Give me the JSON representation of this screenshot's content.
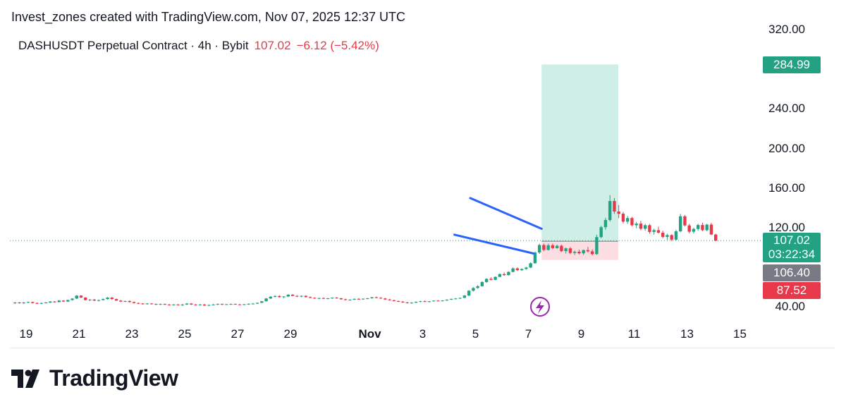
{
  "header": {
    "attribution": "Invest_zones created with TradingView.com, Nov 07, 2025 12:37 UTC",
    "symbol": "DASHUSDT Perpetual Contract · 4h · Bybit",
    "last_price": "107.02",
    "change": "−6.12 (−5.42%)"
  },
  "price_tags": {
    "target": "284.99",
    "last_price": "107.02",
    "countdown": "03:22:34",
    "entry": "106.40",
    "stop": "87.52"
  },
  "brand": {
    "name": "TradingView"
  },
  "colors": {
    "up": "#22a283",
    "down": "#e8394a",
    "pattern_line": "#2962ff",
    "target_zone": "#cfeee6",
    "stop_zone": "#fbdde2"
  },
  "chart_data": {
    "type": "candlestick",
    "timeframe": "4h",
    "y_ticks": [
      "320.00",
      "240.00",
      "200.00",
      "160.00",
      "120.00",
      "40.00"
    ],
    "y_tick_values": [
      320,
      240,
      200,
      160,
      120,
      40
    ],
    "ylim": [
      30,
      325
    ],
    "x_ticks": [
      {
        "label": "19",
        "day": 19
      },
      {
        "label": "21",
        "day": 21
      },
      {
        "label": "23",
        "day": 23
      },
      {
        "label": "25",
        "day": 25
      },
      {
        "label": "27",
        "day": 27
      },
      {
        "label": "29",
        "day": 29
      },
      {
        "label": "Nov",
        "day": 32,
        "bold": true
      },
      {
        "label": "3",
        "day": 34
      },
      {
        "label": "5",
        "day": 36
      },
      {
        "label": "7",
        "day": 38
      },
      {
        "label": "9",
        "day": 40
      },
      {
        "label": "11",
        "day": 42
      },
      {
        "label": "13",
        "day": 44
      },
      {
        "label": "15",
        "day": 46
      }
    ],
    "x_axis_note": "day = day number counted from Oct 1 (Oct 31 = 31, Nov 1 = 32)",
    "xlim_day": [
      18.55,
      47.0
    ],
    "price_line": 107.02,
    "position": {
      "start_day": 38.5,
      "end_day": 41.4,
      "entry": 106.4,
      "target": 284.99,
      "stop": 87.52
    },
    "falling_wedge": {
      "upper": [
        {
          "day": 35.8,
          "price": 150
        },
        {
          "day": 38.5,
          "price": 119
        }
      ],
      "lower": [
        {
          "day": 35.2,
          "price": 113
        },
        {
          "day": 38.2,
          "price": 94
        }
      ]
    },
    "candles_start_day": 18.58,
    "candle_step_day": 0.1667,
    "candles": [
      [
        44,
        45,
        43,
        44.5
      ],
      [
        44.5,
        45,
        43.5,
        44
      ],
      [
        44,
        45,
        43,
        44.5
      ],
      [
        44.5,
        45.5,
        44,
        45
      ],
      [
        45,
        45.5,
        43.5,
        44
      ],
      [
        44,
        44.5,
        43,
        43.5
      ],
      [
        43.5,
        44.5,
        43,
        44
      ],
      [
        44,
        45,
        43.5,
        44.5
      ],
      [
        44.5,
        46,
        44,
        45.5
      ],
      [
        45.5,
        46,
        44.5,
        45
      ],
      [
        45,
        47,
        44.5,
        46.5
      ],
      [
        46.5,
        47,
        45,
        45.5
      ],
      [
        45.5,
        47.5,
        45,
        47
      ],
      [
        47,
        49,
        46.5,
        48.5
      ],
      [
        48.5,
        52,
        48,
        51.5
      ],
      [
        51.5,
        52,
        49,
        49.5
      ],
      [
        49.5,
        50,
        46.5,
        47
      ],
      [
        47,
        48,
        46,
        47.5
      ],
      [
        47.5,
        48,
        46,
        46.5
      ],
      [
        46.5,
        47.5,
        45.5,
        47
      ],
      [
        47,
        48.5,
        46.5,
        48
      ],
      [
        48,
        50,
        47.5,
        49.5
      ],
      [
        49.5,
        50,
        47.5,
        48
      ],
      [
        48,
        48.5,
        46,
        46.5
      ],
      [
        46.5,
        47,
        45,
        45.5
      ],
      [
        45.5,
        46.5,
        45,
        46
      ],
      [
        46,
        46.5,
        44.5,
        45
      ],
      [
        45,
        45.5,
        43.5,
        44
      ],
      [
        44,
        44.5,
        43,
        43.5
      ],
      [
        43.5,
        44,
        42.5,
        43
      ],
      [
        43,
        44,
        42.5,
        43.5
      ],
      [
        43.5,
        44,
        42.5,
        43
      ],
      [
        43,
        43.5,
        42,
        42.5
      ],
      [
        42.5,
        43.5,
        42,
        43
      ],
      [
        43,
        43.5,
        42,
        42.5
      ],
      [
        42.5,
        43,
        41.5,
        42
      ],
      [
        42,
        43,
        41.5,
        42.5
      ],
      [
        42.5,
        43,
        41.5,
        42
      ],
      [
        42,
        43,
        41,
        42.5
      ],
      [
        42.5,
        44,
        42,
        43.5
      ],
      [
        43.5,
        44,
        42,
        42.5
      ],
      [
        42.5,
        43,
        41.5,
        42
      ],
      [
        42,
        43,
        41.5,
        42.5
      ],
      [
        42.5,
        43,
        41,
        41.5
      ],
      [
        41.5,
        42.5,
        41,
        42
      ],
      [
        42,
        43,
        41.5,
        42.5
      ],
      [
        42.5,
        43.5,
        42,
        43
      ],
      [
        43,
        43.5,
        42,
        42.5
      ],
      [
        42.5,
        43,
        42,
        42.8
      ],
      [
        42.8,
        43.5,
        42.2,
        43
      ],
      [
        43,
        43.5,
        42.4,
        42.6
      ],
      [
        42.6,
        43.2,
        42,
        42.4
      ],
      [
        42.4,
        43,
        41.8,
        42.8
      ],
      [
        42.8,
        43.6,
        42.2,
        43.2
      ],
      [
        43.2,
        44,
        42.8,
        43.4
      ],
      [
        43.4,
        44.5,
        43,
        44.2
      ],
      [
        44.2,
        46,
        44,
        45.8
      ],
      [
        45.8,
        49,
        45.5,
        48.6
      ],
      [
        48.6,
        51,
        48,
        50.4
      ],
      [
        50.4,
        52,
        49.6,
        51
      ],
      [
        51,
        52,
        49.4,
        50
      ],
      [
        50,
        51,
        49,
        50.6
      ],
      [
        50.6,
        53,
        50,
        52.4
      ],
      [
        52.4,
        53,
        50.8,
        51.2
      ],
      [
        51.2,
        52,
        50,
        50.8
      ],
      [
        50.8,
        51.6,
        49.8,
        51.2
      ],
      [
        51.2,
        51.8,
        49.6,
        50
      ],
      [
        50,
        50.6,
        48.8,
        49.2
      ],
      [
        49.2,
        49.8,
        48.2,
        48.6
      ],
      [
        48.6,
        49.4,
        47.8,
        49
      ],
      [
        49,
        49.6,
        48,
        48.4
      ],
      [
        48.4,
        49.2,
        47.8,
        48.8
      ],
      [
        48.8,
        49.6,
        48.2,
        49.4
      ],
      [
        49.4,
        50,
        48.4,
        48.8
      ],
      [
        48.8,
        49.4,
        47.4,
        47.8
      ],
      [
        47.8,
        48.4,
        46.6,
        47.2
      ],
      [
        47.2,
        47.8,
        46.4,
        47.4
      ],
      [
        47.4,
        48.6,
        47,
        48.2
      ],
      [
        48.2,
        49,
        47.4,
        47.8
      ],
      [
        47.8,
        48.6,
        47.2,
        48.4
      ],
      [
        48.4,
        49.2,
        47.8,
        48.8
      ],
      [
        48.8,
        50.2,
        48.4,
        49.8
      ],
      [
        49.8,
        50.6,
        48.8,
        49.2
      ],
      [
        49.2,
        50,
        48.2,
        48.6
      ],
      [
        48.6,
        49.2,
        47.2,
        47.6
      ],
      [
        47.6,
        48.2,
        46.4,
        46.8
      ],
      [
        46.8,
        47.4,
        45.6,
        46
      ],
      [
        46,
        46.6,
        45,
        45.4
      ],
      [
        45.4,
        46,
        44.2,
        44.6
      ],
      [
        44.6,
        45.2,
        43.6,
        44
      ],
      [
        44,
        44.8,
        43.4,
        44.4
      ],
      [
        44.4,
        45.6,
        44,
        45.2
      ],
      [
        45.2,
        46.2,
        44.8,
        45.8
      ],
      [
        45.8,
        46.6,
        45,
        45.4
      ],
      [
        45.4,
        46,
        44.6,
        45.8
      ],
      [
        45.8,
        46.6,
        45.4,
        46.4
      ],
      [
        46.4,
        47,
        45.6,
        46
      ],
      [
        46,
        46.8,
        45.6,
        46.6
      ],
      [
        46.6,
        47.6,
        46.2,
        47.4
      ],
      [
        47.4,
        48.4,
        47,
        48.2
      ],
      [
        48.2,
        49,
        47.6,
        48.6
      ],
      [
        48.6,
        49.4,
        48,
        49.2
      ],
      [
        49.2,
        52,
        49,
        51.6
      ],
      [
        51.6,
        57,
        51,
        56.4
      ],
      [
        56.4,
        60,
        55.6,
        59.2
      ],
      [
        59.2,
        62,
        58.4,
        61
      ],
      [
        61,
        66,
        60.4,
        65.2
      ],
      [
        65.2,
        69,
        64.4,
        68.4
      ],
      [
        68.4,
        70,
        66.8,
        67.4
      ],
      [
        67.4,
        71,
        67,
        70.4
      ],
      [
        70.4,
        74,
        70,
        73.2
      ],
      [
        73.2,
        75,
        71.6,
        72.2
      ],
      [
        72.2,
        76,
        71.8,
        75.4
      ],
      [
        75.4,
        80,
        75,
        79
      ],
      [
        79,
        80,
        76.4,
        77.2
      ],
      [
        77.2,
        79,
        76.4,
        78.4
      ],
      [
        78.4,
        80.6,
        77.6,
        79.8
      ],
      [
        79.8,
        85,
        79.2,
        84.2
      ],
      [
        84.2,
        96,
        83.8,
        95
      ],
      [
        95,
        104,
        93.6,
        102.6
      ],
      [
        102.6,
        104,
        96.4,
        97.6
      ],
      [
        97.6,
        104,
        97,
        102.4
      ],
      [
        102.4,
        104,
        98.4,
        99.4
      ],
      [
        99.4,
        103,
        98.8,
        101.8
      ],
      [
        101.8,
        103,
        95.6,
        96.4
      ],
      [
        96.4,
        100,
        94,
        99.2
      ],
      [
        99.2,
        100.6,
        93.4,
        94.6
      ],
      [
        94.6,
        97,
        92.6,
        95.8
      ],
      [
        95.8,
        98,
        93,
        94.2
      ],
      [
        94.2,
        98,
        92.6,
        97.4
      ],
      [
        97.4,
        100.6,
        95,
        96.2
      ],
      [
        96.2,
        98,
        92,
        93.4
      ],
      [
        93.4,
        113,
        92.6,
        110.6
      ],
      [
        110.6,
        122,
        109.4,
        120.6
      ],
      [
        120.6,
        130,
        118,
        127.8
      ],
      [
        127.8,
        153,
        126.4,
        147
      ],
      [
        147,
        150,
        134,
        136.4
      ],
      [
        136.4,
        143,
        129.6,
        134.2
      ],
      [
        134.2,
        136,
        124.4,
        126.2
      ],
      [
        126.2,
        132,
        124,
        129.8
      ],
      [
        129.8,
        131,
        121.4,
        122.6
      ],
      [
        122.6,
        126,
        119.6,
        124.2
      ],
      [
        124.2,
        127,
        117.4,
        119
      ],
      [
        119,
        124,
        117,
        122.6
      ],
      [
        122.6,
        124,
        114,
        115.8
      ],
      [
        115.8,
        119,
        113,
        117.6
      ],
      [
        117.6,
        121,
        114.2,
        115
      ],
      [
        115,
        117,
        109.4,
        110.8
      ],
      [
        110.8,
        114,
        108,
        112.6
      ],
      [
        112.6,
        113.4,
        106.6,
        108
      ],
      [
        108,
        118,
        107,
        116.4
      ],
      [
        116.4,
        134,
        115.6,
        131.6
      ],
      [
        131.6,
        133,
        121.4,
        122.4
      ],
      [
        122.4,
        124,
        114.6,
        116
      ],
      [
        116,
        120,
        114.2,
        118.8
      ],
      [
        118.8,
        124,
        117,
        122.8
      ],
      [
        122.8,
        125,
        116.6,
        117.6
      ],
      [
        117.6,
        124,
        116.4,
        123.2
      ],
      [
        123.2,
        125,
        112.6,
        113.2
      ],
      [
        113.2,
        114,
        106.6,
        107.02
      ]
    ]
  }
}
